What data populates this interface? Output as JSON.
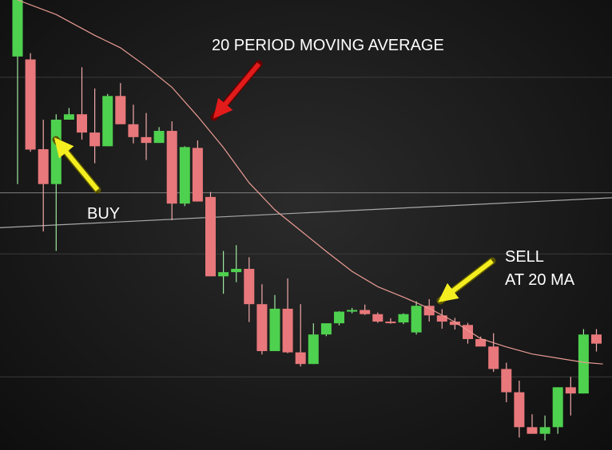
{
  "chart_data": {
    "type": "candlestick",
    "title": "",
    "xlabel": "",
    "ylabel": "",
    "ylim": [
      0,
      100
    ],
    "grid": true,
    "candles": [
      {
        "o": 86.4,
        "h": 100.0,
        "l": 55.7,
        "c": 100.0
      },
      {
        "o": 85.7,
        "h": 87.2,
        "l": 63.5,
        "c": 64.0
      },
      {
        "o": 64.1,
        "h": 71.2,
        "l": 44.3,
        "c": 55.7
      },
      {
        "o": 55.7,
        "h": 72.5,
        "l": 39.6,
        "c": 71.2
      },
      {
        "o": 71.2,
        "h": 74.0,
        "l": 71.2,
        "c": 72.5
      },
      {
        "o": 72.5,
        "h": 83.8,
        "l": 66.4,
        "c": 68.1
      },
      {
        "o": 68.1,
        "h": 78.7,
        "l": 60.7,
        "c": 64.8
      },
      {
        "o": 64.8,
        "h": 77.4,
        "l": 64.8,
        "c": 76.9
      },
      {
        "o": 76.9,
        "h": 80.0,
        "l": 70.3,
        "c": 70.1
      },
      {
        "o": 70.1,
        "h": 74.8,
        "l": 65.5,
        "c": 67.0
      },
      {
        "o": 67.0,
        "h": 72.8,
        "l": 61.5,
        "c": 65.6
      },
      {
        "o": 65.6,
        "h": 69.4,
        "l": 65.6,
        "c": 68.5
      },
      {
        "o": 68.5,
        "h": 70.8,
        "l": 47.0,
        "c": 51.0
      },
      {
        "o": 51.0,
        "h": 64.8,
        "l": 50.4,
        "c": 64.6
      },
      {
        "o": 64.4,
        "h": 66.2,
        "l": 51.5,
        "c": 51.5
      },
      {
        "o": 52.6,
        "h": 53.8,
        "l": 34.2,
        "c": 33.5
      },
      {
        "o": 33.5,
        "h": 39.6,
        "l": 29.3,
        "c": 34.5
      },
      {
        "o": 34.5,
        "h": 41.0,
        "l": 32.1,
        "c": 35.3
      },
      {
        "o": 35.3,
        "h": 38.1,
        "l": 22.5,
        "c": 26.8
      },
      {
        "o": 26.8,
        "h": 31.6,
        "l": 14.7,
        "c": 15.5
      },
      {
        "o": 15.5,
        "h": 29.0,
        "l": 16.4,
        "c": 25.7
      },
      {
        "o": 25.7,
        "h": 33.0,
        "l": 15.0,
        "c": 15.2
      },
      {
        "o": 15.2,
        "h": 26.8,
        "l": 11.8,
        "c": 12.4
      },
      {
        "o": 12.4,
        "h": 22.2,
        "l": 12.4,
        "c": 19.5
      },
      {
        "o": 19.5,
        "h": 22.1,
        "l": 19.1,
        "c": 22.2
      },
      {
        "o": 22.2,
        "h": 25.1,
        "l": 21.7,
        "c": 25.0
      },
      {
        "o": 25.0,
        "h": 25.9,
        "l": 24.6,
        "c": 25.4
      },
      {
        "o": 25.4,
        "h": 26.7,
        "l": 24.2,
        "c": 24.4
      },
      {
        "o": 24.4,
        "h": 24.8,
        "l": 22.3,
        "c": 22.6
      },
      {
        "o": 22.6,
        "h": 23.4,
        "l": 22.1,
        "c": 22.4
      },
      {
        "o": 22.4,
        "h": 24.6,
        "l": 22.0,
        "c": 24.4
      },
      {
        "o": 20.0,
        "h": 27.5,
        "l": 19.5,
        "c": 26.4
      },
      {
        "o": 26.4,
        "h": 28.0,
        "l": 22.6,
        "c": 24.1
      },
      {
        "o": 24.1,
        "h": 25.6,
        "l": 20.9,
        "c": 22.6
      },
      {
        "o": 22.6,
        "h": 23.5,
        "l": 20.7,
        "c": 21.8
      },
      {
        "o": 21.8,
        "h": 22.3,
        "l": 17.3,
        "c": 18.4
      },
      {
        "o": 18.4,
        "h": 19.0,
        "l": 16.7,
        "c": 16.6
      },
      {
        "o": 16.6,
        "h": 19.8,
        "l": 10.5,
        "c": 11.2
      },
      {
        "o": 11.2,
        "h": 12.7,
        "l": 3.2,
        "c": 5.6
      },
      {
        "o": 5.6,
        "h": 8.4,
        "l": -5.3,
        "c": -2.8
      },
      {
        "o": -2.8,
        "h": 0.3,
        "l": -4.4,
        "c": -4.4
      },
      {
        "o": -4.4,
        "h": 0.0,
        "l": -6.0,
        "c": -2.8
      },
      {
        "o": -2.8,
        "h": 6.8,
        "l": -4.4,
        "c": 6.8
      },
      {
        "o": 6.8,
        "h": 9.3,
        "l": 0.0,
        "c": 5.3
      },
      {
        "o": 5.3,
        "h": 20.8,
        "l": 5.3,
        "c": 19.5
      },
      {
        "o": 19.5,
        "h": 20.8,
        "l": 15.4,
        "c": 17.3
      }
    ],
    "moving_average": {
      "name": "20 PERIOD MOVING AVERAGE",
      "points": [
        [
          0,
          100.0
        ],
        [
          3,
          96.5
        ],
        [
          6,
          91.5
        ],
        [
          8,
          88.5
        ],
        [
          10,
          84.0
        ],
        [
          12,
          79.0
        ],
        [
          14,
          72.0
        ],
        [
          16,
          64.5
        ],
        [
          18,
          56.0
        ],
        [
          20,
          49.5
        ],
        [
          22,
          44.5
        ],
        [
          24,
          39.5
        ],
        [
          26,
          34.7
        ],
        [
          28,
          31.0
        ],
        [
          30,
          28.5
        ],
        [
          32,
          25.8
        ],
        [
          34,
          22.5
        ],
        [
          36,
          18.5
        ],
        [
          38,
          16.5
        ],
        [
          40,
          14.8
        ],
        [
          42,
          13.8
        ],
        [
          44,
          12.8
        ],
        [
          45.5,
          12.4
        ]
      ]
    },
    "long_average_start": 45.2,
    "long_average_end": 52.4,
    "horizontal_line": 53.6,
    "gridlines": [
      81.4,
      53.6,
      38.9,
      9.3
    ]
  },
  "annotations": {
    "ma_label": "20 PERIOD MOVING AVERAGE",
    "buy_label": "BUY",
    "sell_label_line1": "SELL",
    "sell_label_line2": "AT 20 MA"
  },
  "colors": {
    "bull": "#4ed14e",
    "bear": "#e8787b",
    "wick_bull": "#9fe79f",
    "wick_bear": "#f2a9ab",
    "ma_line": "#e99b93",
    "long_line": "#a8a8a8",
    "horizontal_line": "#7a7a7a",
    "grid": "#3a3a3a",
    "arrow_red": "#e21b1b",
    "arrow_yellow": "#f4ee20"
  }
}
